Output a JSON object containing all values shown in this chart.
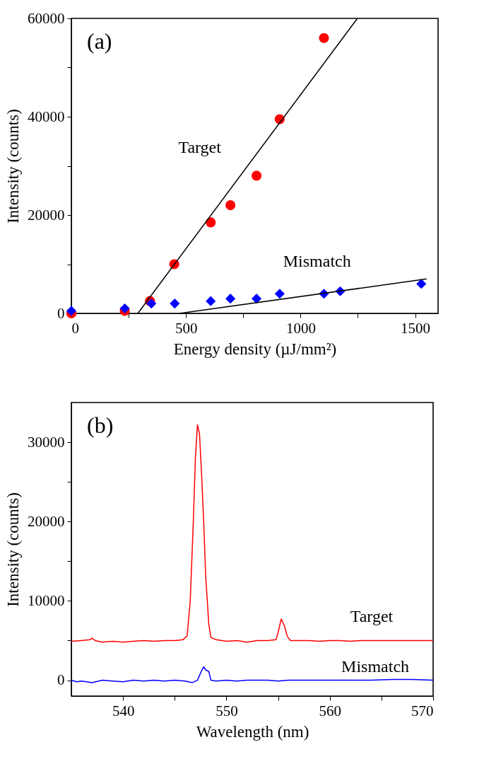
{
  "chart_data": [
    {
      "type": "scatter",
      "title": "(a)",
      "xlabel": "Energy density (µJ/mm²)",
      "ylabel": "Intensity (counts)",
      "xlim": [
        0,
        1600
      ],
      "ylim": [
        0,
        60000
      ],
      "xticks": [
        0,
        {
          "value": 250,
          "label": null
        },
        500,
        {
          "value": 750,
          "label": null
        },
        1000,
        {
          "value": 1250,
          "label": null
        },
        1500
      ],
      "yticks": [
        0,
        {
          "value": 10000,
          "label": null
        },
        20000,
        {
          "value": 30000,
          "label": null
        },
        40000,
        {
          "value": 50000,
          "label": null
        },
        60000
      ],
      "series": [
        {
          "name": "Target",
          "type": "scatter",
          "marker": "circle",
          "color": "#ff0000",
          "x": [
            0,
            233,
            343,
            449,
            608,
            694,
            808,
            909,
            1102
          ],
          "values": [
            0,
            500,
            2500,
            10000,
            18500,
            22000,
            28000,
            39500,
            56000
          ]
        },
        {
          "name": "Mismatch",
          "type": "scatter",
          "marker": "diamond",
          "color": "#0000ff",
          "x": [
            0,
            233,
            349,
            451,
            608,
            694,
            808,
            909,
            1102,
            1173,
            1527
          ],
          "values": [
            500,
            1000,
            2000,
            2000,
            2500,
            3000,
            3000,
            4000,
            4000,
            4500,
            6000
          ]
        },
        {
          "type": "line",
          "color": "#000000",
          "line_style": "solid",
          "x": [
            290,
            1248
          ],
          "values": [
            0,
            60000
          ]
        },
        {
          "type": "line",
          "color": "#000000",
          "line_style": "solid",
          "x": [
            470,
            1550
          ],
          "values": [
            0,
            7000
          ]
        }
      ]
    },
    {
      "type": "line",
      "title": "(b)",
      "xlabel": "Wavelength (nm)",
      "ylabel": "Intensity (counts)",
      "xlim": [
        535,
        570
      ],
      "ylim": [
        -2000,
        35000
      ],
      "xticks": [
        540,
        {
          "value": 545,
          "label": null
        },
        550,
        {
          "value": 555,
          "label": null
        },
        560,
        {
          "value": 565,
          "label": null
        },
        570
      ],
      "yticks": [
        0,
        {
          "value": 5000,
          "label": null
        },
        10000,
        {
          "value": 15000,
          "label": null
        },
        20000,
        {
          "value": 25000,
          "label": null
        },
        30000
      ],
      "marker": "none",
      "line_style": "solid",
      "series": [
        {
          "name": "Target",
          "color": "#ff0000",
          "x": [
            535,
            536,
            536.8,
            537,
            537.3,
            538,
            539,
            540,
            541,
            542,
            543,
            544,
            545,
            545.8,
            546.2,
            546.5,
            546.8,
            547.0,
            547.2,
            547.4,
            547.6,
            547.8,
            548.0,
            548.3,
            548.5,
            549,
            550,
            551,
            552,
            553,
            554,
            554.8,
            555.0,
            555.3,
            555.6,
            555.9,
            556.2,
            557,
            558,
            559,
            560,
            561,
            562,
            563,
            564,
            565,
            566,
            567,
            568,
            569,
            570
          ],
          "values": [
            4900,
            5000,
            5100,
            5300,
            5000,
            4800,
            4900,
            4800,
            4900,
            5000,
            4900,
            5000,
            5000,
            5100,
            5600,
            10000,
            20000,
            28000,
            32200,
            31000,
            26000,
            20000,
            13000,
            7000,
            5400,
            5100,
            4900,
            5000,
            4800,
            5000,
            5000,
            5100,
            6000,
            7700,
            6900,
            5500,
            5000,
            5000,
            5000,
            4900,
            5000,
            5000,
            4900,
            5000,
            5000,
            5000,
            5000,
            5000,
            5000,
            5000,
            5000
          ]
        },
        {
          "name": "Mismatch",
          "color": "#0000ff",
          "x": [
            535,
            535.5,
            536,
            537,
            538,
            539,
            540,
            541,
            542,
            543,
            544,
            545,
            546,
            546.7,
            547.2,
            547.6,
            547.8,
            548.0,
            548.3,
            548.5,
            549,
            550,
            551,
            552,
            553,
            554,
            555,
            556,
            557,
            558,
            559,
            560,
            562,
            564,
            566,
            568,
            570
          ],
          "values": [
            0,
            -200,
            -100,
            -300,
            0,
            -100,
            -200,
            0,
            -100,
            0,
            -100,
            0,
            -100,
            -300,
            0,
            1200,
            1700,
            1300,
            1100,
            0,
            -100,
            0,
            -100,
            0,
            0,
            0,
            -100,
            0,
            0,
            0,
            0,
            0,
            0,
            0,
            100,
            100,
            0
          ]
        }
      ]
    }
  ]
}
